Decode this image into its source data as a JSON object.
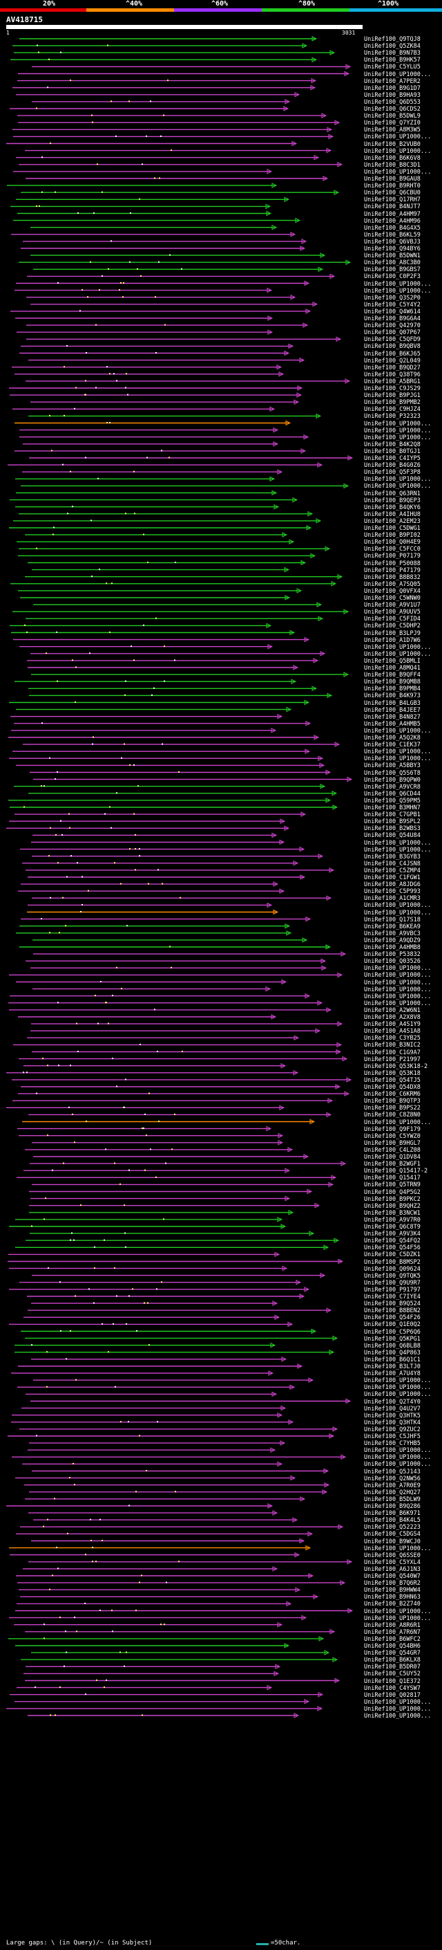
{
  "scale": {
    "ticks": [
      "20%",
      "^40%",
      "^60%",
      "^80%",
      "^100%"
    ],
    "colors": [
      "#e00000",
      "#ff8c00",
      "#9b30ff",
      "#22cc22",
      "#10b0e0"
    ]
  },
  "query": {
    "title": "AV418715",
    "start": "1",
    "end": "3031"
  },
  "hits": [
    {
      "label": "UniRef100_Q9TQJ8",
      "color": "#22cc22"
    },
    {
      "label": "UniRef100_Q5ZK84",
      "color": "#22cc22"
    },
    {
      "label": "UniRef100_B9N7B3",
      "color": "#22cc22"
    },
    {
      "label": "UniRef100_B9HK57",
      "color": "#22cc22"
    },
    {
      "label": "UniRef100_C5YLU5",
      "color": "#cc44cc"
    },
    {
      "label": "UniRef100_UP1000...",
      "color": "#cc44cc"
    },
    {
      "label": "UniRef100_A7PER2",
      "color": "#cc44cc"
    },
    {
      "label": "UniRef100_B9G1D7",
      "color": "#cc44cc"
    },
    {
      "label": "UniRef100_B9HA93",
      "color": "#cc44cc"
    },
    {
      "label": "UniRef100_Q6D553",
      "color": "#cc44cc"
    },
    {
      "label": "UniRef100_Q6CDS2",
      "color": "#cc44cc"
    },
    {
      "label": "UniRef100_B5DWL9",
      "color": "#cc44cc"
    },
    {
      "label": "UniRef100_Q7YZI0",
      "color": "#cc44cc"
    },
    {
      "label": "UniRef100_A8M3W5",
      "color": "#cc44cc"
    },
    {
      "label": "UniRef100_UP1000...",
      "color": "#cc44cc"
    },
    {
      "label": "UniRef100_B2VUB0",
      "color": "#cc44cc"
    },
    {
      "label": "UniRef100_UP1000...",
      "color": "#cc44cc"
    },
    {
      "label": "UniRef100_B6K6V8",
      "color": "#cc44cc"
    },
    {
      "label": "UniRef100_B8C3D1",
      "color": "#cc44cc"
    },
    {
      "label": "UniRef100_UP1000...",
      "color": "#cc44cc"
    },
    {
      "label": "UniRef100_B9GAU8",
      "color": "#cc44cc"
    },
    {
      "label": "UniRef100_B9RHT0",
      "color": "#22cc22"
    },
    {
      "label": "UniRef100_Q6CBU0",
      "color": "#22cc22"
    },
    {
      "label": "UniRef100_Q17RH7",
      "color": "#22cc22"
    },
    {
      "label": "UniRef100_B4NJT7",
      "color": "#22cc22"
    },
    {
      "label": "UniRef100_A4HM97",
      "color": "#22cc22"
    },
    {
      "label": "UniRef100_A4HM96",
      "color": "#22cc22"
    },
    {
      "label": "UniRef100_B4G4X5",
      "color": "#22cc22"
    },
    {
      "label": "UniRef100_B6KL59",
      "color": "#cc44cc"
    },
    {
      "label": "UniRef100_Q6VBJ3",
      "color": "#cc44cc"
    },
    {
      "label": "UniRef100_Q94BY6",
      "color": "#cc44cc"
    },
    {
      "label": "UniRef100_B5DWN1",
      "color": "#22cc22"
    },
    {
      "label": "UniRef100_A8C3B0",
      "color": "#22cc22"
    },
    {
      "label": "UniRef100_B9GBS7",
      "color": "#22cc22"
    },
    {
      "label": "UniRef100_C0P2F3",
      "color": "#cc44cc"
    },
    {
      "label": "UniRef100_UP1000...",
      "color": "#cc44cc"
    },
    {
      "label": "UniRef100_UP1000...",
      "color": "#cc44cc"
    },
    {
      "label": "UniRef100_Q3S2P0",
      "color": "#cc44cc"
    },
    {
      "label": "UniRef100_C5Y4Y2",
      "color": "#cc44cc"
    },
    {
      "label": "UniRef100_Q4W614",
      "color": "#cc44cc"
    },
    {
      "label": "UniRef100_B9G6A4",
      "color": "#cc44cc"
    },
    {
      "label": "UniRef100_Q42970",
      "color": "#cc44cc"
    },
    {
      "label": "UniRef100_Q07P67",
      "color": "#cc44cc"
    },
    {
      "label": "UniRef100_C5QFD9",
      "color": "#cc44cc"
    },
    {
      "label": "UniRef100_B9QBV8",
      "color": "#cc44cc"
    },
    {
      "label": "UniRef100_B6KJ65",
      "color": "#cc44cc"
    },
    {
      "label": "UniRef100_Q2L049",
      "color": "#cc44cc"
    },
    {
      "label": "UniRef100_B9QD27",
      "color": "#cc44cc"
    },
    {
      "label": "UniRef100_Q38T96",
      "color": "#cc44cc"
    },
    {
      "label": "UniRef100_A5BRG1",
      "color": "#cc44cc"
    },
    {
      "label": "UniRef100_C9JS29",
      "color": "#cc44cc"
    },
    {
      "label": "UniRef100_B9PJG1",
      "color": "#cc44cc"
    },
    {
      "label": "UniRef100_B9PMB2",
      "color": "#cc44cc"
    },
    {
      "label": "UniRef100_C9HJZ4",
      "color": "#cc44cc"
    },
    {
      "label": "UniRef100_P32323",
      "color": "#22cc22"
    },
    {
      "label": "UniRef100_UP1000...",
      "color": "#ff8c00"
    },
    {
      "label": "UniRef100_UP1000...",
      "color": "#cc44cc"
    },
    {
      "label": "UniRef100_UP1000...",
      "color": "#cc44cc"
    },
    {
      "label": "UniRef100_B4K2Q8",
      "color": "#cc44cc"
    },
    {
      "label": "UniRef100_B0TGJ1",
      "color": "#cc44cc"
    },
    {
      "label": "UniRef100_C4IYP5",
      "color": "#cc44cc"
    },
    {
      "label": "UniRef100_B4G0Z6",
      "color": "#cc44cc"
    },
    {
      "label": "UniRef100_Q5F3P8",
      "color": "#cc44cc"
    },
    {
      "label": "UniRef100_UP1000...",
      "color": "#22cc22"
    },
    {
      "label": "UniRef100_UP1000...",
      "color": "#22cc22"
    },
    {
      "label": "UniRef100_Q63RN1",
      "color": "#22cc22"
    },
    {
      "label": "UniRef100_B9QEP3",
      "color": "#22cc22"
    },
    {
      "label": "UniRef100_B4QKY6",
      "color": "#22cc22"
    },
    {
      "label": "UniRef100_A4IHU8",
      "color": "#22cc22"
    },
    {
      "label": "UniRef100_A2EM23",
      "color": "#22cc22"
    },
    {
      "label": "UniRef100_C5DWG1",
      "color": "#22cc22"
    },
    {
      "label": "UniRef100_B9PI02",
      "color": "#22cc22"
    },
    {
      "label": "UniRef100_Q0H4E9",
      "color": "#22cc22"
    },
    {
      "label": "UniRef100_C5FCC0",
      "color": "#22cc22"
    },
    {
      "label": "UniRef100_P07179",
      "color": "#22cc22"
    },
    {
      "label": "UniRef100_P50088",
      "color": "#22cc22"
    },
    {
      "label": "UniRef100_P47179",
      "color": "#22cc22"
    },
    {
      "label": "UniRef100_B8B832",
      "color": "#22cc22"
    },
    {
      "label": "UniRef100_A7SQ05",
      "color": "#22cc22"
    },
    {
      "label": "UniRef100_Q0VFX4",
      "color": "#22cc22"
    },
    {
      "label": "UniRef100_C5WNW0",
      "color": "#22cc22"
    },
    {
      "label": "UniRef100_A9V1U7",
      "color": "#22cc22"
    },
    {
      "label": "UniRef100_A9UUV5",
      "color": "#22cc22"
    },
    {
      "label": "UniRef100_C5FID4",
      "color": "#22cc22"
    },
    {
      "label": "UniRef100_C5DHP2",
      "color": "#22cc22"
    },
    {
      "label": "UniRef100_B3LPJ9",
      "color": "#22cc22"
    },
    {
      "label": "UniRef100_A1D7W6",
      "color": "#cc44cc"
    },
    {
      "label": "UniRef100_UP1000...",
      "color": "#cc44cc"
    },
    {
      "label": "UniRef100_UP1000...",
      "color": "#cc44cc"
    },
    {
      "label": "UniRef100_Q5BMLI",
      "color": "#cc44cc"
    },
    {
      "label": "UniRef100_A8MQ41",
      "color": "#cc44cc"
    },
    {
      "label": "UniRef100_B9QFF4",
      "color": "#22cc22"
    },
    {
      "label": "UniRef100_B9QMB8",
      "color": "#22cc22"
    },
    {
      "label": "UniRef100_B9PMB4",
      "color": "#22cc22"
    },
    {
      "label": "UniRef100_B4K973",
      "color": "#22cc22"
    },
    {
      "label": "UniRef100_B4LGB3",
      "color": "#22cc22"
    },
    {
      "label": "UniRef100_B4JEE7",
      "color": "#22cc22"
    },
    {
      "label": "UniRef100_B4N827",
      "color": "#cc44cc"
    },
    {
      "label": "UniRef100_A4HMB5",
      "color": "#cc44cc"
    },
    {
      "label": "UniRef100_UP1000...",
      "color": "#cc44cc"
    },
    {
      "label": "UniRef100_A5Q2K8",
      "color": "#cc44cc"
    },
    {
      "label": "UniRef100_C1EK37",
      "color": "#cc44cc"
    },
    {
      "label": "UniRef100_UP1000...",
      "color": "#cc44cc"
    },
    {
      "label": "UniRef100_UP1000...",
      "color": "#cc44cc"
    },
    {
      "label": "UniRef100_A5BBY3",
      "color": "#cc44cc"
    },
    {
      "label": "UniRef100_Q5S6T8",
      "color": "#cc44cc"
    },
    {
      "label": "UniRef100_B9QPW0",
      "color": "#cc44cc"
    },
    {
      "label": "UniRef100_A9VCR8",
      "color": "#22cc22"
    },
    {
      "label": "UniRef100_Q6CD44",
      "color": "#22cc22"
    },
    {
      "label": "UniRef100_Q59PM5",
      "color": "#22cc22"
    },
    {
      "label": "UniRef100_B3MHN7",
      "color": "#22cc22"
    },
    {
      "label": "UniRef100_C7GPB1",
      "color": "#cc44cc"
    },
    {
      "label": "UniRef100_B9SPL2",
      "color": "#cc44cc"
    },
    {
      "label": "UniRef100_B2WBS3",
      "color": "#cc44cc"
    },
    {
      "label": "UniRef100_Q54U84",
      "color": "#cc44cc"
    },
    {
      "label": "UniRef100_UP1000...",
      "color": "#cc44cc"
    },
    {
      "label": "UniRef100_UP1000...",
      "color": "#cc44cc"
    },
    {
      "label": "UniRef100_B3GYB3",
      "color": "#cc44cc"
    },
    {
      "label": "UniRef100_C4JSN8",
      "color": "#cc44cc"
    },
    {
      "label": "UniRef100_C5ZMP4",
      "color": "#cc44cc"
    },
    {
      "label": "UniRef100_C1FGW1",
      "color": "#cc44cc"
    },
    {
      "label": "UniRef100_A8JDG6",
      "color": "#cc44cc"
    },
    {
      "label": "UniRef100_C5P993",
      "color": "#cc44cc"
    },
    {
      "label": "UniRef100_A1CMR3",
      "color": "#cc44cc"
    },
    {
      "label": "UniRef100_UP1000...",
      "color": "#cc44cc"
    },
    {
      "label": "UniRef100_UP1000...",
      "color": "#ff8c00"
    },
    {
      "label": "UniRef100_Q17S18",
      "color": "#cc44cc"
    },
    {
      "label": "UniRef100_B6KEA9",
      "color": "#22cc22"
    },
    {
      "label": "UniRef100_A9VBC3",
      "color": "#22cc22"
    },
    {
      "label": "UniRef100_A9QDZ9",
      "color": "#22cc22"
    },
    {
      "label": "UniRef100_A4HMB8",
      "color": "#22cc22"
    },
    {
      "label": "UniRef100_P53832",
      "color": "#cc44cc"
    },
    {
      "label": "UniRef100_Q03526",
      "color": "#cc44cc"
    },
    {
      "label": "UniRef100_UP1000...",
      "color": "#cc44cc"
    },
    {
      "label": "UniRef100_UP1000...",
      "color": "#cc44cc"
    },
    {
      "label": "UniRef100_UP1000...",
      "color": "#cc44cc"
    },
    {
      "label": "UniRef100_UP1000...",
      "color": "#cc44cc"
    },
    {
      "label": "UniRef100_UP1000...",
      "color": "#cc44cc"
    },
    {
      "label": "UniRef100_UP1000...",
      "color": "#cc44cc"
    },
    {
      "label": "UniRef100_A2W6N1",
      "color": "#cc44cc"
    },
    {
      "label": "UniRef100_A2X8V8",
      "color": "#cc44cc"
    },
    {
      "label": "UniRef100_A4S1Y9",
      "color": "#cc44cc"
    },
    {
      "label": "UniRef100_A4S1A8",
      "color": "#cc44cc"
    },
    {
      "label": "UniRef100_C3YB25",
      "color": "#cc44cc"
    },
    {
      "label": "UniRef100_B3NIC2",
      "color": "#cc44cc"
    },
    {
      "label": "UniRef100_C1G9A7",
      "color": "#cc44cc"
    },
    {
      "label": "UniRef100_P21997",
      "color": "#cc44cc"
    },
    {
      "label": "UniRef100_Q53K18-2",
      "color": "#cc44cc"
    },
    {
      "label": "UniRef100_Q53K18",
      "color": "#cc44cc"
    },
    {
      "label": "UniRef100_Q54TJ5",
      "color": "#cc44cc"
    },
    {
      "label": "UniRef100_Q54DX8",
      "color": "#cc44cc"
    },
    {
      "label": "UniRef100_C6KRM6",
      "color": "#cc44cc"
    },
    {
      "label": "UniRef100_B9QTP3",
      "color": "#cc44cc"
    },
    {
      "label": "UniRef100_B9PS22",
      "color": "#cc44cc"
    },
    {
      "label": "UniRef100_C8Z8N0",
      "color": "#cc44cc"
    },
    {
      "label": "UniRef100_UP1000...",
      "color": "#ff8c00"
    },
    {
      "label": "UniRef100_Q9F179",
      "color": "#cc44cc"
    },
    {
      "label": "UniRef100_C5YWZ0",
      "color": "#cc44cc"
    },
    {
      "label": "UniRef100_B9HGL7",
      "color": "#cc44cc"
    },
    {
      "label": "UniRef100_C4LZ08",
      "color": "#cc44cc"
    },
    {
      "label": "UniRef100_Q1DV84",
      "color": "#cc44cc"
    },
    {
      "label": "UniRef100_B2WGF1",
      "color": "#cc44cc"
    },
    {
      "label": "UniRef100_Q15417-2",
      "color": "#cc44cc"
    },
    {
      "label": "UniRef100_Q15417",
      "color": "#cc44cc"
    },
    {
      "label": "UniRef100_Q5TRN9",
      "color": "#cc44cc"
    },
    {
      "label": "UniRef100_Q4P5G2",
      "color": "#cc44cc"
    },
    {
      "label": "UniRef100_B9PKC2",
      "color": "#cc44cc"
    },
    {
      "label": "UniRef100_B9QHZ2",
      "color": "#cc44cc"
    },
    {
      "label": "UniRef100_B3NCW1",
      "color": "#22cc22"
    },
    {
      "label": "UniRef100_A9V7R0",
      "color": "#22cc22"
    },
    {
      "label": "UniRef100_Q6C8T9",
      "color": "#22cc22"
    },
    {
      "label": "UniRef100_A9V3K4",
      "color": "#22cc22"
    },
    {
      "label": "UniRef100_Q54FQ2",
      "color": "#22cc22"
    },
    {
      "label": "UniRef100_Q54F56",
      "color": "#22cc22"
    },
    {
      "label": "UniRef100_C5DZK1",
      "color": "#cc44cc"
    },
    {
      "label": "UniRef100_B8MSP2",
      "color": "#cc44cc"
    },
    {
      "label": "UniRef100_Q09624",
      "color": "#cc44cc"
    },
    {
      "label": "UniRef100_Q9TQK5",
      "color": "#cc44cc"
    },
    {
      "label": "UniRef100_Q9U9R7",
      "color": "#cc44cc"
    },
    {
      "label": "UniRef100_P91797",
      "color": "#cc44cc"
    },
    {
      "label": "UniRef100_C7IYE4",
      "color": "#cc44cc"
    },
    {
      "label": "UniRef100_B9Q524",
      "color": "#cc44cc"
    },
    {
      "label": "UniRef100_B8BEN2",
      "color": "#cc44cc"
    },
    {
      "label": "UniRef100_Q54F26",
      "color": "#cc44cc"
    },
    {
      "label": "UniRef100_Q1E0Q2",
      "color": "#cc44cc"
    },
    {
      "label": "UniRef100_C5P6Q6",
      "color": "#22cc22"
    },
    {
      "label": "UniRef100_Q5KPG1",
      "color": "#22cc22"
    },
    {
      "label": "UniRef100_Q6BLB8",
      "color": "#22cc22"
    },
    {
      "label": "UniRef100_Q4P863",
      "color": "#22cc22"
    },
    {
      "label": "UniRef100_B6Q1C1",
      "color": "#cc44cc"
    },
    {
      "label": "UniRef100_B3LTJ0",
      "color": "#cc44cc"
    },
    {
      "label": "UniRef100_A7U4Y8",
      "color": "#cc44cc"
    },
    {
      "label": "UniRef100_UP1000...",
      "color": "#cc44cc"
    },
    {
      "label": "UniRef100_UP1000...",
      "color": "#cc44cc"
    },
    {
      "label": "UniRef100_UP1000...",
      "color": "#cc44cc"
    },
    {
      "label": "UniRef100_Q2T4Y0",
      "color": "#cc44cc"
    },
    {
      "label": "UniRef100_Q4U2V7",
      "color": "#cc44cc"
    },
    {
      "label": "UniRef100_Q3HTK5",
      "color": "#cc44cc"
    },
    {
      "label": "UniRef100_Q3HTK4",
      "color": "#cc44cc"
    },
    {
      "label": "UniRef100_Q9ZUC2",
      "color": "#cc44cc"
    },
    {
      "label": "UniRef100_C5JHF5",
      "color": "#cc44cc"
    },
    {
      "label": "UniRef100_C7YHB5",
      "color": "#cc44cc"
    },
    {
      "label": "UniRef100_UP1000...",
      "color": "#cc44cc"
    },
    {
      "label": "UniRef100_UP1000...",
      "color": "#cc44cc"
    },
    {
      "label": "UniRef100_UP1000...",
      "color": "#cc44cc"
    },
    {
      "label": "UniRef100_Q5J143",
      "color": "#cc44cc"
    },
    {
      "label": "UniRef100_Q2NW56",
      "color": "#cc44cc"
    },
    {
      "label": "UniRef100_A7R0E9",
      "color": "#cc44cc"
    },
    {
      "label": "UniRef100_Q2HQ27",
      "color": "#cc44cc"
    },
    {
      "label": "UniRef100_B5DLW9",
      "color": "#cc44cc"
    },
    {
      "label": "UniRef100_B9Q286",
      "color": "#cc44cc"
    },
    {
      "label": "UniRef100_B6K971",
      "color": "#cc44cc"
    },
    {
      "label": "UniRef100_B4K4L5",
      "color": "#cc44cc"
    },
    {
      "label": "UniRef100_Q52223",
      "color": "#cc44cc"
    },
    {
      "label": "UniRef100_C5DGS4",
      "color": "#cc44cc"
    },
    {
      "label": "UniRef100_B9WCJ0",
      "color": "#cc44cc"
    },
    {
      "label": "UniRef100_UP1000...",
      "color": "#ff8c00"
    },
    {
      "label": "UniRef100_Q6SSE0",
      "color": "#cc44cc"
    },
    {
      "label": "UniRef100_C5YXL4",
      "color": "#cc44cc"
    },
    {
      "label": "UniRef100_A6J1N3",
      "color": "#cc44cc"
    },
    {
      "label": "UniRef100_Q540W7",
      "color": "#cc44cc"
    },
    {
      "label": "UniRef100_B7Q6R2",
      "color": "#cc44cc"
    },
    {
      "label": "UniRef100_B9HWW4",
      "color": "#cc44cc"
    },
    {
      "label": "UniRef100_B9HN63",
      "color": "#cc44cc"
    },
    {
      "label": "UniRef100_B2Z740",
      "color": "#cc44cc"
    },
    {
      "label": "UniRef100_UP1000...",
      "color": "#cc44cc"
    },
    {
      "label": "UniRef100_UP1000...",
      "color": "#cc44cc"
    },
    {
      "label": "UniRef100_A8R6R1",
      "color": "#cc44cc"
    },
    {
      "label": "UniRef100_A7R6N7",
      "color": "#cc44cc"
    },
    {
      "label": "UniRef100_B6WFC2",
      "color": "#22cc22"
    },
    {
      "label": "UniRef100_Q54BH6",
      "color": "#22cc22"
    },
    {
      "label": "UniRef100_Q54GR7",
      "color": "#22cc22"
    },
    {
      "label": "UniRef100_B6KLX8",
      "color": "#22cc22"
    },
    {
      "label": "UniRef100_B5DR07",
      "color": "#cc44cc"
    },
    {
      "label": "UniRef100_C5UY52",
      "color": "#cc44cc"
    },
    {
      "label": "UniRef100_Q1E372",
      "color": "#cc44cc"
    },
    {
      "label": "UniRef100_C4YSW7",
      "color": "#cc44cc"
    },
    {
      "label": "UniRef100_Q02817",
      "color": "#cc44cc"
    },
    {
      "label": "UniRef100_UP1000...",
      "color": "#cc44cc"
    },
    {
      "label": "UniRef100_UP1000...",
      "color": "#cc44cc"
    },
    {
      "label": "UniRef100_UP1000...",
      "color": "#cc44cc"
    }
  ],
  "footer": {
    "left": "Large gaps: \\ (in Query)/~ (in Subject)",
    "right": "=50char."
  }
}
